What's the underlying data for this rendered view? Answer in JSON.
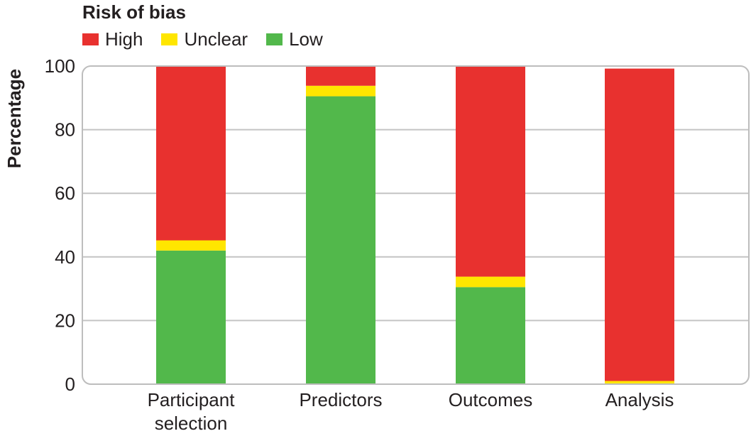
{
  "legend": {
    "title": "Risk of bias",
    "items": [
      {
        "label": "High",
        "color": "#e8312f"
      },
      {
        "label": "Unclear",
        "color": "#ffe600"
      },
      {
        "label": "Low",
        "color": "#52b84b"
      }
    ]
  },
  "chart_data": {
    "type": "bar",
    "stacked": true,
    "ylabel": "Percentage",
    "xlabel": "",
    "ylim": [
      0,
      100
    ],
    "yticks": [
      0,
      20,
      40,
      60,
      80,
      100
    ],
    "categories": [
      [
        "Participant",
        "selection"
      ],
      [
        "Predictors"
      ],
      [
        "Outcomes"
      ],
      [
        "Analysis"
      ]
    ],
    "series": [
      {
        "name": "Low",
        "color": "#52b84b",
        "values": [
          42,
          90.5,
          30.5,
          0
        ]
      },
      {
        "name": "Unclear",
        "color": "#ffe600",
        "values": [
          3.2,
          3.3,
          3.3,
          1
        ]
      },
      {
        "name": "High",
        "color": "#e8312f",
        "values": [
          54.8,
          6.2,
          66.2,
          98.2
        ]
      }
    ],
    "grid": true,
    "legend_position": "top-left"
  }
}
